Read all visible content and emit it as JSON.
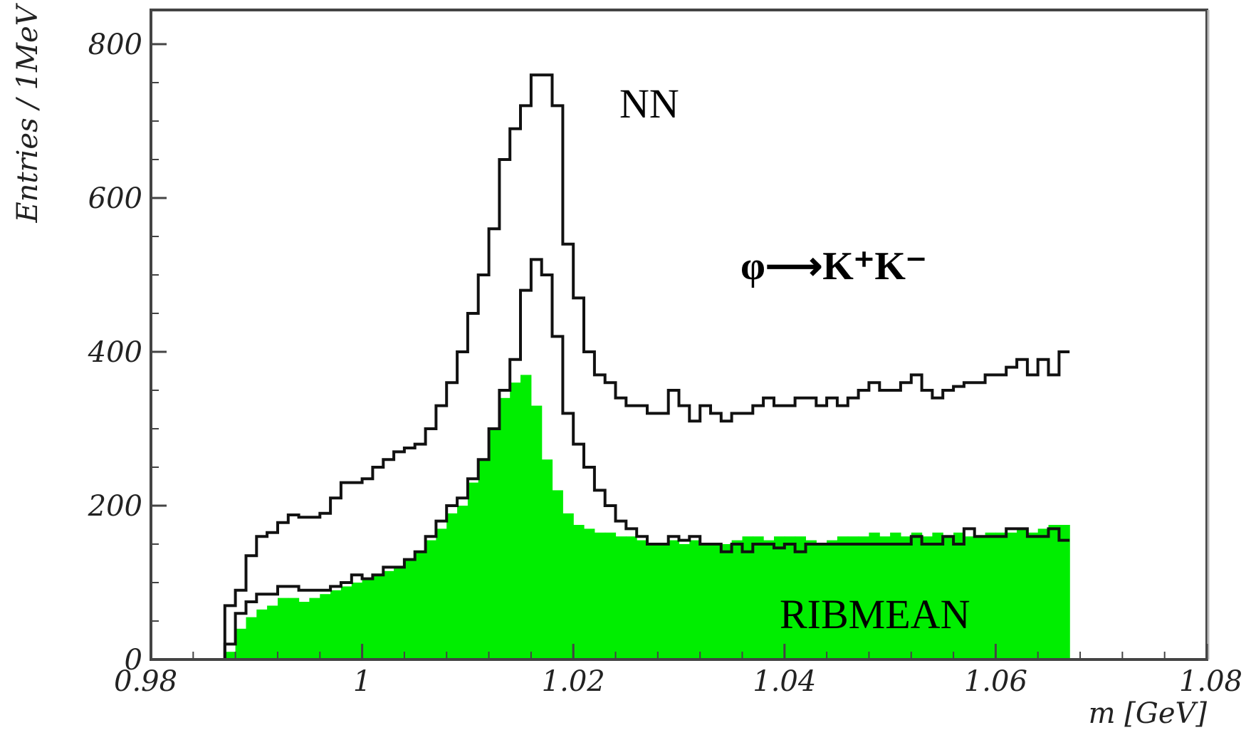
{
  "chart_data": {
    "type": "histogram",
    "title": "",
    "xlabel": "m [GeV]",
    "ylabel": "Entries / 1MeV",
    "xlim": [
      0.98,
      1.08
    ],
    "ylim": [
      0,
      800
    ],
    "x_ticks": [
      0.98,
      1.0,
      1.02,
      1.04,
      1.06,
      1.08
    ],
    "x_tick_labels": [
      "0.98",
      "1",
      "1.02",
      "1.04",
      "1.06",
      "1.08"
    ],
    "y_ticks": [
      0,
      200,
      400,
      600,
      800
    ],
    "y_tick_labels": [
      "0",
      "200",
      "400",
      "600",
      "800"
    ],
    "bin_width_gev": 0.001,
    "bin_start_gev": 0.987,
    "grid": false,
    "annotations": {
      "decay": "φ⟶K⁺K⁻",
      "series_nn_label": "NN",
      "series_ribmean_label": "RIBMEAN"
    },
    "series": [
      {
        "name": "NN",
        "style": "step",
        "color": "#111111",
        "values": [
          70,
          90,
          135,
          160,
          165,
          178,
          188,
          185,
          185,
          190,
          210,
          230,
          230,
          235,
          250,
          260,
          270,
          275,
          280,
          300,
          330,
          360,
          400,
          450,
          500,
          560,
          650,
          690,
          720,
          760,
          760,
          720,
          540,
          470,
          400,
          370,
          360,
          340,
          330,
          330,
          320,
          320,
          350,
          330,
          310,
          330,
          320,
          310,
          320,
          320,
          330,
          340,
          330,
          330,
          340,
          340,
          330,
          340,
          330,
          340,
          350,
          360,
          350,
          350,
          360,
          370,
          350,
          340,
          350,
          355,
          360,
          360,
          370,
          370,
          380,
          390,
          370,
          390,
          370,
          400
        ]
      },
      {
        "name": "",
        "style": "step",
        "color": "#111111",
        "values": [
          20,
          60,
          75,
          85,
          85,
          95,
          95,
          90,
          90,
          90,
          95,
          100,
          110,
          105,
          110,
          120,
          120,
          130,
          140,
          160,
          180,
          200,
          210,
          235,
          260,
          300,
          350,
          390,
          480,
          520,
          500,
          420,
          320,
          280,
          250,
          220,
          200,
          180,
          170,
          160,
          150,
          150,
          160,
          155,
          160,
          150,
          150,
          140,
          150,
          140,
          150,
          150,
          145,
          150,
          140,
          150,
          150,
          150,
          150,
          150,
          150,
          150,
          150,
          150,
          150,
          160,
          150,
          150,
          160,
          150,
          170,
          160,
          160,
          160,
          170,
          170,
          160,
          160,
          170,
          155
        ]
      },
      {
        "name": "RIBMEAN",
        "style": "filled",
        "color": "#00ee00",
        "values": [
          10,
          40,
          55,
          65,
          70,
          80,
          80,
          75,
          80,
          85,
          90,
          95,
          100,
          105,
          110,
          115,
          120,
          130,
          140,
          155,
          170,
          190,
          200,
          230,
          260,
          300,
          340,
          360,
          370,
          330,
          260,
          220,
          190,
          175,
          170,
          165,
          165,
          160,
          160,
          155,
          150,
          150,
          155,
          150,
          155,
          150,
          150,
          150,
          155,
          160,
          160,
          155,
          160,
          160,
          160,
          155,
          150,
          155,
          160,
          160,
          160,
          165,
          160,
          165,
          160,
          165,
          160,
          165,
          160,
          165,
          160,
          160,
          165,
          165,
          165,
          170,
          165,
          170,
          175,
          175
        ]
      }
    ]
  }
}
